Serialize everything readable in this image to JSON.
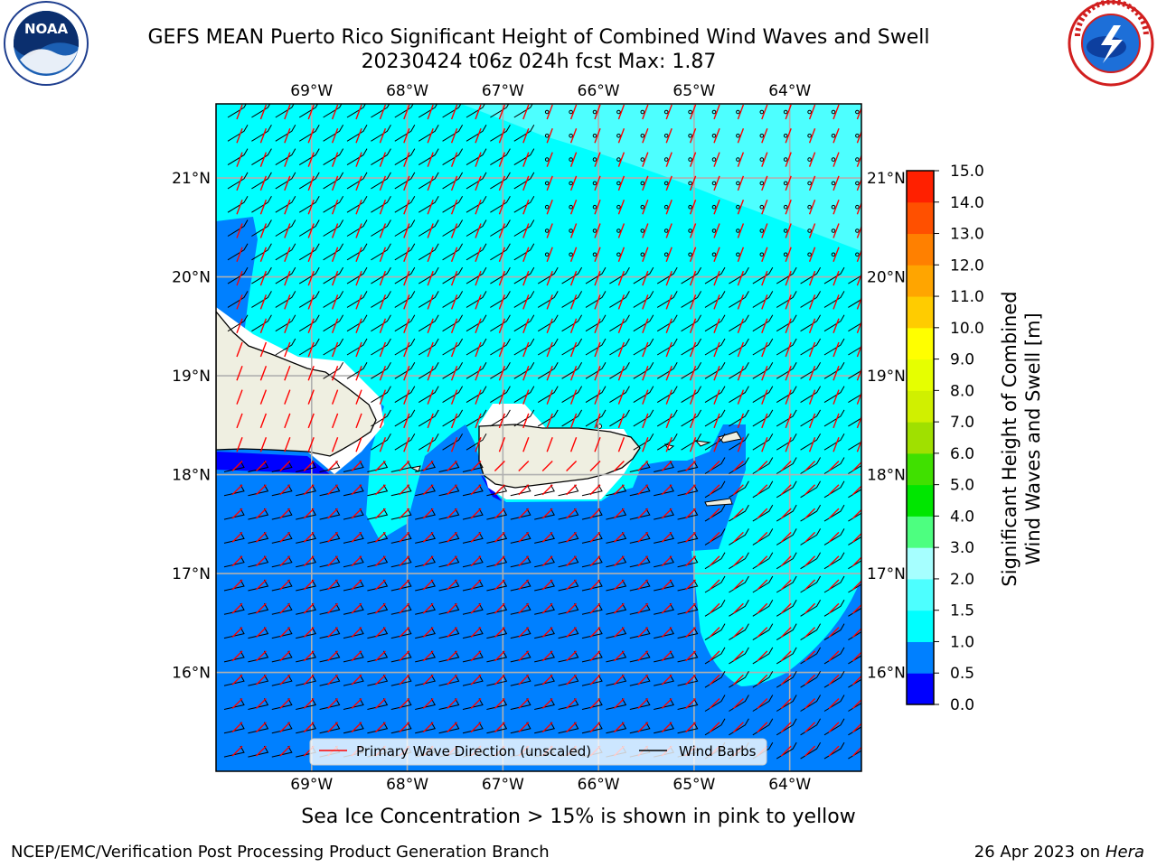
{
  "title": {
    "line1": "GEFS MEAN Puerto Rico Significant Height of Combined Wind Waves and Swell",
    "line2": "20230424 t06z 024h fcst   Max: 1.87"
  },
  "logos": {
    "left": {
      "name": "noaa-logo",
      "text": "NOAA"
    },
    "right": {
      "name": "nws-logo",
      "text": "NATIONAL WEATHER SERVICE"
    }
  },
  "map": {
    "lon_range": [
      -70.0,
      -63.25
    ],
    "lat_range": [
      15.0,
      21.75
    ],
    "lon_ticks": [
      {
        "value": -69,
        "label": "69°W"
      },
      {
        "value": -68,
        "label": "68°W"
      },
      {
        "value": -67,
        "label": "67°W"
      },
      {
        "value": -66,
        "label": "66°W"
      },
      {
        "value": -65,
        "label": "65°W"
      },
      {
        "value": -64,
        "label": "64°W"
      }
    ],
    "lat_ticks": [
      {
        "value": 16,
        "label": "16°N"
      },
      {
        "value": 17,
        "label": "17°N"
      },
      {
        "value": 18,
        "label": "18°N"
      },
      {
        "value": 19,
        "label": "19°N"
      },
      {
        "value": 20,
        "label": "20°N"
      },
      {
        "value": 21,
        "label": "21°N"
      }
    ],
    "gridlines": true,
    "colors": {
      "ocean_0_5_1_0": "#0080ff",
      "ocean_1_0_1_5": "#00ffff",
      "ocean_1_5_2_0": "#4dffff",
      "ocean_0_0_0_5": "#0000ff",
      "land": "#efefe1",
      "no_data": "#ffffff",
      "wave_arrow": "#ff0000",
      "wind_barb": "#000000",
      "grid": "#b0b0b0"
    },
    "legend": {
      "placement": "bottom-center",
      "items": [
        {
          "label": "Primary Wave Direction (unscaled)",
          "color": "#ff0000"
        },
        {
          "label": "Wind Barbs",
          "color": "#000000"
        }
      ]
    }
  },
  "colorbar": {
    "label": "Significant Height of Combined\nWind Waves and Swell [m]",
    "ticks": [
      "0.0",
      "0.5",
      "1.0",
      "1.5",
      "2.0",
      "3.0",
      "4.0",
      "5.0",
      "6.0",
      "7.0",
      "8.0",
      "9.0",
      "10.0",
      "11.0",
      "12.0",
      "13.0",
      "14.0",
      "15.0"
    ],
    "colors": [
      "#0000ff",
      "#0080ff",
      "#00ffff",
      "#4dffff",
      "#a6ffff",
      "#4dff80",
      "#00e600",
      "#40e000",
      "#a0e000",
      "#d0f000",
      "#e6ff00",
      "#ffff00",
      "#ffcc00",
      "#ffa500",
      "#ff8000",
      "#ff5000",
      "#ff2000"
    ]
  },
  "note": "Sea Ice Concentration > 15% is shown in pink to yellow",
  "footer": {
    "left": "NCEP/EMC/Verification Post Processing Product Generation Branch",
    "right_prefix": "26 Apr 2023 on ",
    "right_host": "Hera"
  }
}
